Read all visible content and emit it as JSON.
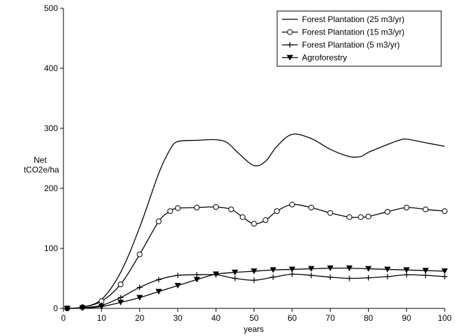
{
  "chart_data": {
    "type": "line",
    "title": "",
    "xlabel": "years",
    "ylabel": [
      "Net",
      "tCO2e/ha"
    ],
    "xlim": [
      0,
      100
    ],
    "ylim": [
      0,
      500
    ],
    "xticks": [
      0,
      10,
      20,
      30,
      40,
      50,
      60,
      70,
      80,
      90,
      100
    ],
    "yticks": [
      0,
      100,
      200,
      300,
      400,
      500
    ],
    "grid": false,
    "legend_position": "top-right",
    "series": [
      {
        "name": "Forest Plantation (25 m3/yr)",
        "marker": "none",
        "x": [
          1,
          5,
          10,
          15,
          20,
          25,
          28,
          30,
          35,
          40,
          43,
          46,
          50,
          53,
          56,
          60,
          65,
          70,
          75,
          78,
          80,
          85,
          88,
          90,
          95,
          100
        ],
        "y": [
          0,
          2,
          15,
          60,
          135,
          225,
          265,
          278,
          280,
          281,
          276,
          258,
          238,
          245,
          270,
          290,
          283,
          265,
          253,
          253,
          260,
          273,
          280,
          282,
          276,
          270
        ]
      },
      {
        "name": "Forest Plantation (15 m3/yr)",
        "marker": "circle",
        "x": [
          1,
          5,
          10,
          15,
          20,
          25,
          28,
          30,
          35,
          40,
          44,
          47,
          50,
          53,
          56,
          60,
          65,
          70,
          75,
          78,
          80,
          85,
          90,
          95,
          100
        ],
        "y": [
          0,
          2,
          12,
          40,
          90,
          145,
          162,
          167,
          168,
          169,
          165,
          152,
          141,
          147,
          162,
          173,
          168,
          159,
          152,
          152,
          153,
          161,
          168,
          165,
          162
        ]
      },
      {
        "name": "Forest Plantation (5 m3/yr)",
        "marker": "plus",
        "x": [
          1,
          5,
          10,
          15,
          20,
          25,
          30,
          35,
          40,
          45,
          50,
          55,
          60,
          65,
          70,
          75,
          80,
          85,
          90,
          95,
          100
        ],
        "y": [
          0,
          1,
          5,
          18,
          35,
          48,
          55,
          56,
          56,
          50,
          47,
          52,
          57,
          55,
          52,
          50,
          51,
          53,
          56,
          55,
          53
        ]
      },
      {
        "name": "Agroforestry",
        "marker": "triangle-down",
        "x": [
          1,
          5,
          10,
          15,
          20,
          25,
          30,
          35,
          40,
          45,
          50,
          55,
          60,
          65,
          70,
          75,
          80,
          85,
          90,
          95,
          100
        ],
        "y": [
          0,
          0.5,
          3,
          10,
          18,
          28,
          38,
          48,
          57,
          60,
          62,
          64,
          65,
          66,
          67,
          67,
          66,
          65,
          64,
          63,
          62
        ]
      }
    ]
  }
}
